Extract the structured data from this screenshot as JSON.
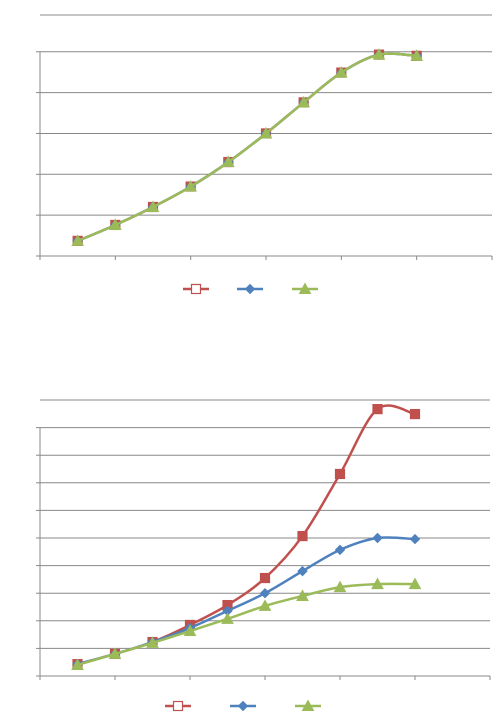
{
  "chart_data": [
    {
      "type": "line",
      "grid": true,
      "marker_sizes_equal": true,
      "x": [
        0.5,
        1,
        1.5,
        2,
        2.5,
        3,
        3.5,
        4,
        4.5,
        5
      ],
      "xlim": [
        0,
        6
      ],
      "xticks": [
        0,
        1,
        2,
        3,
        4,
        5,
        6
      ],
      "ylim": [
        0,
        5.9
      ],
      "yticks": [
        0,
        1,
        2,
        3,
        4,
        5
      ],
      "series": [
        {
          "color": "#c0504d",
          "marker": "square",
          "values": [
            0.37,
            0.76,
            1.2,
            1.7,
            2.3,
            3.0,
            3.76,
            4.49,
            4.93,
            4.9
          ]
        },
        {
          "color": "#4f81bd",
          "marker": "diamond",
          "values": [
            0.37,
            0.76,
            1.2,
            1.7,
            2.3,
            3.0,
            3.76,
            4.49,
            4.93,
            4.9
          ]
        },
        {
          "color": "#9bbb59",
          "marker": "triangle",
          "values": [
            0.37,
            0.76,
            1.2,
            1.7,
            2.3,
            3.0,
            3.76,
            4.49,
            4.93,
            4.9
          ]
        }
      ]
    },
    {
      "type": "line",
      "grid": true,
      "x": [
        0.5,
        1,
        1.5,
        2,
        2.5,
        3,
        3.5,
        4,
        4.5,
        5
      ],
      "xlim": [
        0,
        6
      ],
      "xticks": [
        0,
        1,
        2,
        3,
        4,
        5,
        6
      ],
      "ylim": [
        0,
        10
      ],
      "yticks": [
        0,
        1,
        2,
        3,
        4,
        5,
        6,
        7,
        8,
        9
      ],
      "series": [
        {
          "color": "#c0504d",
          "marker": "square",
          "values": [
            0.43,
            0.8,
            1.23,
            1.85,
            2.57,
            3.55,
            5.07,
            7.32,
            9.67,
            9.49
          ]
        },
        {
          "color": "#4f81bd",
          "marker": "diamond",
          "values": [
            0.43,
            0.8,
            1.23,
            1.74,
            2.36,
            3.0,
            3.8,
            4.57,
            5.0,
            4.96
          ]
        },
        {
          "color": "#9bbb59",
          "marker": "triangle",
          "values": [
            0.4,
            0.8,
            1.2,
            1.63,
            2.07,
            2.54,
            2.9,
            3.22,
            3.33,
            3.33
          ]
        }
      ]
    }
  ]
}
